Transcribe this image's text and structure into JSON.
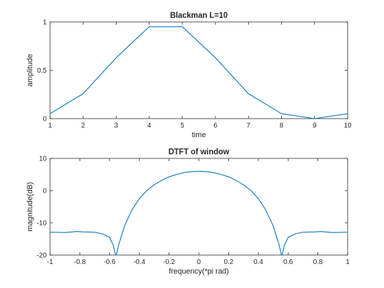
{
  "chart_data": [
    {
      "type": "line",
      "title": "Blackman L=10",
      "xlabel": "time",
      "ylabel": "amplitude",
      "xlim": [
        1,
        10
      ],
      "ylim": [
        0,
        1
      ],
      "xticks": [
        1,
        2,
        3,
        4,
        5,
        6,
        7,
        8,
        9,
        10
      ],
      "xtick_labels": [
        "1",
        "2",
        "3",
        "4",
        "5",
        "6",
        "7",
        "8",
        "9",
        "10"
      ],
      "yticks": [
        0,
        0.5,
        1
      ],
      "ytick_labels": [
        "0",
        "0.5",
        "1"
      ],
      "grid": false,
      "color": "#0072BD",
      "x": [
        1,
        2,
        3,
        4,
        5,
        6,
        7,
        8,
        9,
        10
      ],
      "y": [
        0.051,
        0.258,
        0.63,
        0.951,
        0.951,
        0.63,
        0.258,
        0.051,
        0.0,
        0.051
      ]
    },
    {
      "type": "line",
      "title": "DTFT of window",
      "xlabel": "frequency(*pi rad)",
      "ylabel": "magnitude(dB)",
      "xlim": [
        -1,
        1
      ],
      "ylim": [
        -20,
        10
      ],
      "xticks": [
        -1,
        -0.8,
        -0.6,
        -0.4,
        -0.2,
        0,
        0.2,
        0.4,
        0.6,
        0.8,
        1
      ],
      "xtick_labels": [
        "-1",
        "-0.8",
        "-0.6",
        "-0.4",
        "-0.2",
        "0",
        "0.2",
        "0.4",
        "0.6",
        "0.8",
        "1"
      ],
      "yticks": [
        -20,
        -10,
        0,
        10
      ],
      "ytick_labels": [
        "-20",
        "-10",
        "0",
        "10"
      ],
      "grid": false,
      "color": "#0072BD",
      "x": [
        -1,
        -0.9,
        -0.82,
        -0.78,
        -0.7,
        -0.65,
        -0.6,
        -0.575,
        -0.56,
        -0.555,
        -0.54,
        -0.52,
        -0.5,
        -0.45,
        -0.4,
        -0.35,
        -0.3,
        -0.25,
        -0.2,
        -0.15,
        -0.1,
        -0.05,
        0,
        0.05,
        0.1,
        0.15,
        0.2,
        0.25,
        0.3,
        0.35,
        0.4,
        0.45,
        0.5,
        0.52,
        0.54,
        0.555,
        0.56,
        0.575,
        0.6,
        0.65,
        0.7,
        0.78,
        0.82,
        0.9,
        1
      ],
      "y": [
        -12.9,
        -13.0,
        -12.7,
        -12.8,
        -12.9,
        -13.4,
        -14.5,
        -17.0,
        -19.9,
        -20.0,
        -17.0,
        -14.0,
        -11.0,
        -6.0,
        -2.5,
        0.0,
        1.8,
        3.2,
        4.3,
        5.0,
        5.6,
        5.9,
        6.0,
        5.9,
        5.6,
        5.0,
        4.3,
        3.2,
        1.8,
        0.0,
        -2.5,
        -6.0,
        -11.0,
        -14.0,
        -17.0,
        -20.0,
        -19.9,
        -17.0,
        -14.5,
        -13.4,
        -12.9,
        -12.8,
        -12.7,
        -13.0,
        -12.9
      ]
    }
  ]
}
